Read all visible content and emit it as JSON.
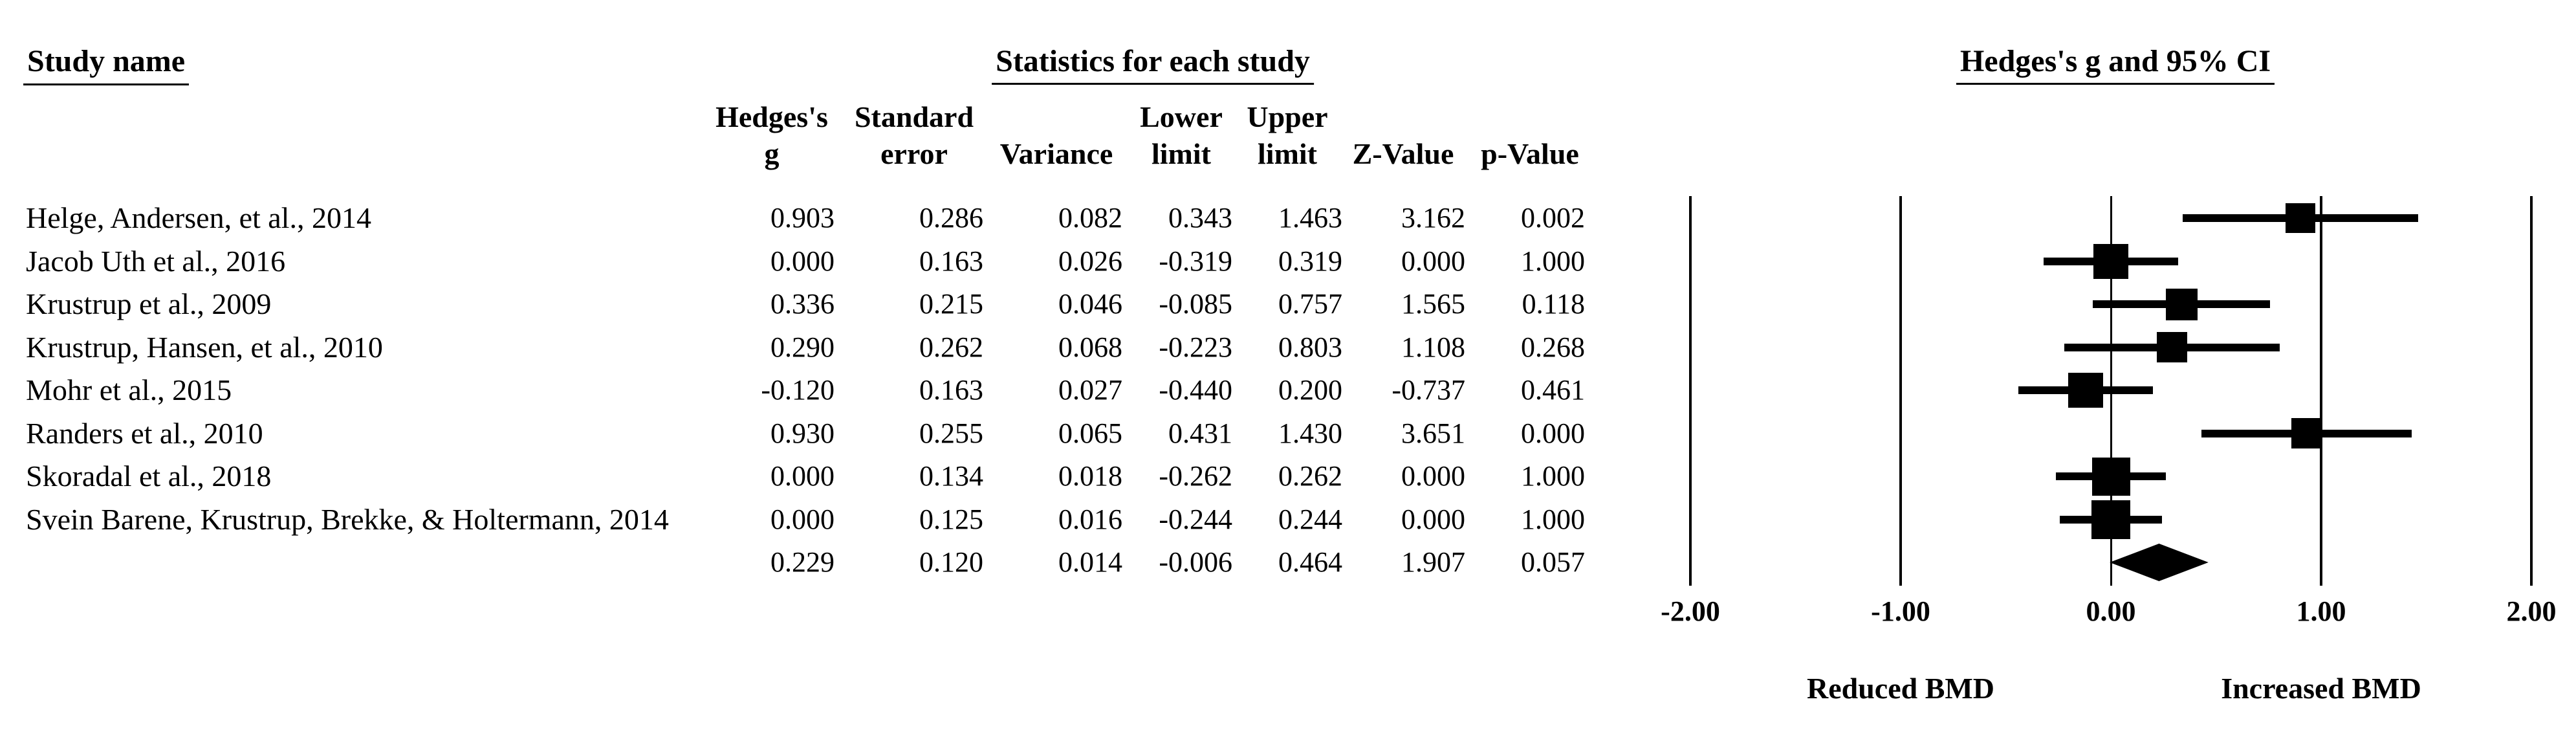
{
  "table": {
    "study_name_header": "Study name",
    "statistics_header": "Statistics for each study",
    "ci_header": "Hedges's g and 95% CI",
    "columns": [
      {
        "key": "g",
        "line1": "Hedges's",
        "line2": "g"
      },
      {
        "key": "se",
        "line1": "Standard",
        "line2": "error"
      },
      {
        "key": "variance",
        "line1": "",
        "line2": "Variance"
      },
      {
        "key": "lower",
        "line1": "Lower",
        "line2": "limit"
      },
      {
        "key": "upper",
        "line1": "Upper",
        "line2": "limit"
      },
      {
        "key": "z",
        "line1": "",
        "line2": "Z-Value"
      },
      {
        "key": "p",
        "line1": "",
        "line2": "p-Value"
      }
    ]
  },
  "chart_data": {
    "type": "scatter",
    "variant": "forest_plot",
    "title": "Hedges's g and 95% CI",
    "xlabel": "Hedges's g",
    "xlim": [
      -2,
      2
    ],
    "xtick_values": [
      -2,
      -1,
      0,
      1,
      2
    ],
    "xticks": [
      "-2.00",
      "-1.00",
      "0.00",
      "1.00",
      "2.00"
    ],
    "x_axis_left_label": "Reduced BMD",
    "x_axis_right_label": "Increased BMD",
    "grid": "vertical-lines-at-ticks",
    "marker": "square-sized-by-weight",
    "studies": [
      {
        "name": "Helge, Andersen, et al., 2014",
        "g": "0.903",
        "se": "0.286",
        "variance": "0.082",
        "lower": "0.343",
        "upper": "1.463",
        "z": "3.162",
        "p": "0.002"
      },
      {
        "name": "Jacob Uth et al., 2016",
        "g": "0.000",
        "se": "0.163",
        "variance": "0.026",
        "lower": "-0.319",
        "upper": "0.319",
        "z": "0.000",
        "p": "1.000"
      },
      {
        "name": "Krustrup et al., 2009",
        "g": "0.336",
        "se": "0.215",
        "variance": "0.046",
        "lower": "-0.085",
        "upper": "0.757",
        "z": "1.565",
        "p": "0.118"
      },
      {
        "name": "Krustrup, Hansen, et al., 2010",
        "g": "0.290",
        "se": "0.262",
        "variance": "0.068",
        "lower": "-0.223",
        "upper": "0.803",
        "z": "1.108",
        "p": "0.268"
      },
      {
        "name": "Mohr et al., 2015",
        "g": "-0.120",
        "se": "0.163",
        "variance": "0.027",
        "lower": "-0.440",
        "upper": "0.200",
        "z": "-0.737",
        "p": "0.461"
      },
      {
        "name": "Randers et al., 2010",
        "g": "0.930",
        "se": "0.255",
        "variance": "0.065",
        "lower": "0.431",
        "upper": "1.430",
        "z": "3.651",
        "p": "0.000"
      },
      {
        "name": "Skoradal et al., 2018",
        "g": "0.000",
        "se": "0.134",
        "variance": "0.018",
        "lower": "-0.262",
        "upper": "0.262",
        "z": "0.000",
        "p": "1.000"
      },
      {
        "name": "Svein Barene, Krustrup, Brekke, & Holtermann, 2014",
        "g": "0.000",
        "se": "0.125",
        "variance": "0.016",
        "lower": "-0.244",
        "upper": "0.244",
        "z": "0.000",
        "p": "1.000"
      }
    ],
    "summary": {
      "name": "",
      "g": "0.229",
      "se": "0.120",
      "variance": "0.014",
      "lower": "-0.006",
      "upper": "0.464",
      "z": "1.907",
      "p": "0.057",
      "marker": "diamond"
    }
  },
  "colors": {
    "foreground": "#000000",
    "background": "#ffffff"
  }
}
